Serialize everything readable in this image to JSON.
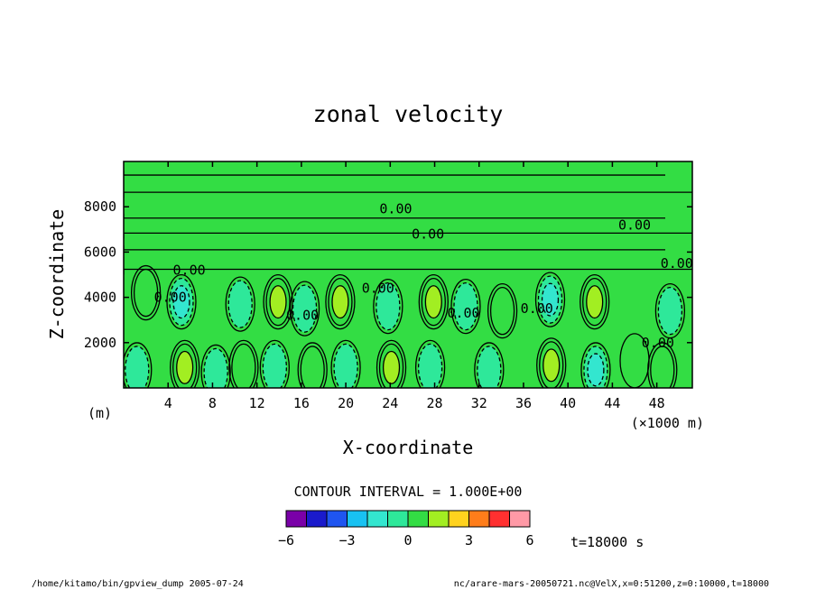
{
  "chart_data": {
    "type": "heatmap",
    "subtype": "filled-contour",
    "title": "zonal velocity",
    "xlabel": "X-coordinate",
    "ylabel": "Z-coordinate",
    "x_unit_left": "(m)",
    "x_unit_right": "(×1000 m)",
    "xlim": [
      0,
      51.2
    ],
    "ylim": [
      0,
      10000
    ],
    "x_ticks": [
      4,
      8,
      12,
      16,
      20,
      24,
      28,
      32,
      36,
      40,
      44,
      48
    ],
    "y_ticks": [
      2000,
      4000,
      6000,
      8000
    ],
    "contour_label": "0.00",
    "contour_interval_text": "CONTOUR INTERVAL = 1.000E+00",
    "colorbar": {
      "colors": [
        "#7a00a8",
        "#1a1acc",
        "#1f55f0",
        "#18c2f2",
        "#33e6cf",
        "#2ee89a",
        "#33dd44",
        "#a2ee22",
        "#ffd21e",
        "#ff7d1a",
        "#ff3030",
        "#ff99a6"
      ],
      "levels": [
        -6,
        -5,
        -4,
        -3,
        -2,
        -1,
        0,
        1,
        2,
        3,
        4,
        5,
        6
      ],
      "tick_labels": [
        "−6",
        "−3",
        "0",
        "3",
        "6"
      ]
    },
    "anomalies": [
      {
        "x": 5.2,
        "z": 3800,
        "value": -2.6
      },
      {
        "x": 1.2,
        "z": 800,
        "value": -1.8
      },
      {
        "x": 8.3,
        "z": 700,
        "value": -1.3
      },
      {
        "x": 10.5,
        "z": 3700,
        "value": -1.4
      },
      {
        "x": 13.9,
        "z": 3800,
        "value": 2.8
      },
      {
        "x": 16.3,
        "z": 3500,
        "value": -1.2
      },
      {
        "x": 19.5,
        "z": 3800,
        "value": 2.9
      },
      {
        "x": 23.8,
        "z": 3600,
        "value": -1.7
      },
      {
        "x": 27.9,
        "z": 3800,
        "value": 2.9
      },
      {
        "x": 30.8,
        "z": 3600,
        "value": -1.1
      },
      {
        "x": 34.1,
        "z": 3400,
        "value": 1.3
      },
      {
        "x": 38.4,
        "z": 3900,
        "value": -2.3
      },
      {
        "x": 42.4,
        "z": 3800,
        "value": 2.9
      },
      {
        "x": 49.2,
        "z": 3400,
        "value": -1.2
      },
      {
        "x": 5.5,
        "z": 900,
        "value": 2.6
      },
      {
        "x": 10.8,
        "z": 900,
        "value": 1.3
      },
      {
        "x": 13.6,
        "z": 900,
        "value": -1.2
      },
      {
        "x": 17.0,
        "z": 800,
        "value": 1.4
      },
      {
        "x": 20.0,
        "z": 900,
        "value": -1.6
      },
      {
        "x": 24.1,
        "z": 900,
        "value": 2.8
      },
      {
        "x": 27.6,
        "z": 900,
        "value": -1.4
      },
      {
        "x": 32.9,
        "z": 800,
        "value": -1.2
      },
      {
        "x": 38.5,
        "z": 1000,
        "value": 2.9
      },
      {
        "x": 42.5,
        "z": 800,
        "value": -2.4
      },
      {
        "x": 48.5,
        "z": 800,
        "value": 1.5
      },
      {
        "x": 2.0,
        "z": 4200,
        "value": 1.1
      },
      {
        "x": 46.0,
        "z": 1200,
        "value": 0.0
      }
    ]
  },
  "time_label": "t=18000 s",
  "footer": {
    "left": "/home/kitamo/bin/gpview_dump  2005-07-24",
    "right": "nc/arare-mars-20050721.nc@VelX,x=0:51200,z=0:10000,t=18000"
  }
}
